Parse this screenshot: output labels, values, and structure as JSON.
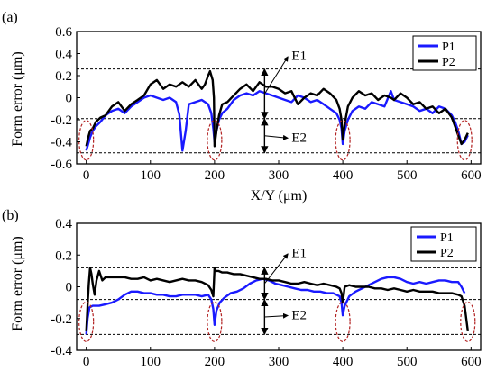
{
  "chart_data": [
    {
      "panel_label": "(a)",
      "type": "line",
      "xlabel": "X/Y (μm)",
      "ylabel": "Form error (μm)",
      "xlim": [
        -15,
        615
      ],
      "ylim": [
        -0.6,
        0.6
      ],
      "xticks": [
        "0",
        "100",
        "200",
        "300",
        "400",
        "500",
        "600"
      ],
      "yticks": [
        "-0.6",
        "-0.4",
        "-0.2",
        "0",
        "0.2",
        "0.4",
        "0.6"
      ],
      "xtick_values": [
        0,
        100,
        200,
        300,
        400,
        500,
        600
      ],
      "ytick_values": [
        -0.6,
        -0.4,
        -0.2,
        0,
        0.2,
        0.4,
        0.6
      ],
      "legend_position": "top-right",
      "reference_lines": [
        0.26,
        -0.19,
        -0.5
      ],
      "annotations": [
        {
          "text": "E1",
          "x": 278,
          "from": -0.19,
          "to": 0.26,
          "label_y": 0.39
        },
        {
          "text": "E2",
          "x": 278,
          "from": -0.5,
          "to": -0.19,
          "label_y": -0.35
        }
      ],
      "highlight_ellipses_x": [
        0,
        200,
        400,
        590
      ],
      "series": [
        {
          "name": "P1",
          "color": "#1a1aff",
          "x": [
            0,
            3,
            6,
            10,
            15,
            22,
            30,
            40,
            50,
            60,
            70,
            80,
            90,
            100,
            110,
            120,
            130,
            140,
            145,
            150,
            155,
            160,
            170,
            180,
            190,
            195,
            198,
            200,
            203,
            207,
            212,
            220,
            230,
            240,
            250,
            260,
            270,
            280,
            290,
            300,
            310,
            320,
            330,
            340,
            350,
            360,
            370,
            380,
            390,
            395,
            398,
            400,
            403,
            408,
            415,
            425,
            435,
            445,
            455,
            465,
            475,
            480,
            490,
            500,
            510,
            520,
            530,
            540,
            550,
            560,
            570,
            575,
            580,
            585,
            590,
            595
          ],
          "y": [
            -0.48,
            -0.42,
            -0.36,
            -0.3,
            -0.26,
            -0.22,
            -0.16,
            -0.12,
            -0.1,
            -0.14,
            -0.08,
            -0.04,
            0.0,
            0.02,
            0.0,
            -0.02,
            0.0,
            -0.04,
            -0.15,
            -0.48,
            -0.3,
            -0.06,
            -0.04,
            -0.02,
            -0.06,
            -0.14,
            -0.28,
            -0.4,
            -0.3,
            -0.2,
            -0.14,
            -0.1,
            -0.02,
            0.02,
            0.04,
            0.02,
            0.06,
            0.04,
            0.02,
            0.0,
            -0.02,
            -0.04,
            0.02,
            0.0,
            -0.04,
            -0.02,
            -0.06,
            -0.1,
            -0.14,
            -0.2,
            -0.28,
            -0.42,
            -0.3,
            -0.2,
            -0.12,
            -0.08,
            -0.1,
            -0.04,
            -0.06,
            -0.08,
            0.06,
            -0.02,
            -0.04,
            -0.06,
            -0.08,
            -0.12,
            -0.1,
            -0.14,
            -0.08,
            -0.1,
            -0.16,
            -0.22,
            -0.3,
            -0.42,
            -0.4,
            -0.34
          ]
        },
        {
          "name": "P2",
          "color": "#000000",
          "x": [
            0,
            3,
            6,
            10,
            15,
            22,
            30,
            40,
            50,
            60,
            70,
            80,
            90,
            100,
            110,
            120,
            130,
            140,
            150,
            160,
            170,
            180,
            185,
            190,
            193,
            197,
            199,
            200,
            203,
            207,
            212,
            220,
            230,
            240,
            250,
            260,
            270,
            280,
            290,
            300,
            310,
            320,
            330,
            340,
            350,
            360,
            370,
            380,
            390,
            395,
            398,
            400,
            403,
            408,
            415,
            425,
            435,
            445,
            455,
            465,
            475,
            480,
            490,
            500,
            510,
            520,
            530,
            540,
            550,
            560,
            570,
            575,
            580,
            585,
            590,
            595
          ],
          "y": [
            -0.44,
            -0.36,
            -0.3,
            -0.28,
            -0.22,
            -0.18,
            -0.16,
            -0.08,
            -0.04,
            -0.12,
            -0.06,
            -0.02,
            0.02,
            0.12,
            0.16,
            0.08,
            0.12,
            0.1,
            0.14,
            0.1,
            0.16,
            0.08,
            0.12,
            0.2,
            0.24,
            0.16,
            0.0,
            -0.44,
            -0.3,
            -0.16,
            -0.06,
            -0.04,
            0.02,
            0.08,
            0.12,
            0.06,
            0.14,
            0.1,
            0.1,
            0.08,
            0.04,
            0.06,
            -0.06,
            0.0,
            0.04,
            0.02,
            0.08,
            0.04,
            -0.02,
            -0.1,
            -0.2,
            -0.38,
            -0.24,
            -0.08,
            0.0,
            0.06,
            0.02,
            0.04,
            -0.02,
            0.02,
            0.0,
            -0.02,
            0.04,
            0.0,
            -0.06,
            -0.04,
            -0.1,
            -0.08,
            -0.14,
            -0.1,
            -0.18,
            -0.26,
            -0.34,
            -0.42,
            -0.38,
            -0.32
          ]
        }
      ]
    },
    {
      "panel_label": "(b)",
      "type": "line",
      "xlabel": "",
      "ylabel": "Form error (μm)",
      "xlim": [
        -15,
        615
      ],
      "ylim": [
        -0.4,
        0.4
      ],
      "xticks": [
        "0",
        "100",
        "200",
        "300",
        "400",
        "500",
        "600"
      ],
      "yticks": [
        "-0.4",
        "-0.2",
        "0",
        "0.2",
        "0.4"
      ],
      "xtick_values": [
        0,
        100,
        200,
        300,
        400,
        500,
        600
      ],
      "ytick_values": [
        -0.4,
        -0.2,
        0,
        0.2,
        0.4
      ],
      "legend_position": "top-right",
      "reference_lines": [
        0.12,
        -0.08,
        -0.3
      ],
      "annotations": [
        {
          "text": "E1",
          "x": 278,
          "from": -0.08,
          "to": 0.12,
          "label_y": 0.22
        },
        {
          "text": "E2",
          "x": 278,
          "from": -0.3,
          "to": -0.08,
          "label_y": -0.17
        }
      ],
      "highlight_ellipses_x": [
        0,
        200,
        400,
        595
      ],
      "series": [
        {
          "name": "P1",
          "color": "#1a1aff",
          "x": [
            0,
            2,
            5,
            10,
            20,
            30,
            40,
            50,
            60,
            70,
            80,
            90,
            100,
            110,
            120,
            130,
            140,
            150,
            160,
            170,
            180,
            190,
            195,
            198,
            200,
            203,
            208,
            215,
            225,
            235,
            245,
            255,
            265,
            275,
            285,
            295,
            305,
            315,
            325,
            335,
            345,
            355,
            365,
            375,
            385,
            395,
            398,
            400,
            403,
            410,
            420,
            430,
            440,
            450,
            460,
            470,
            480,
            490,
            500,
            510,
            520,
            530,
            540,
            550,
            560,
            570,
            580,
            585,
            590
          ],
          "y": [
            -0.3,
            -0.2,
            -0.13,
            -0.12,
            -0.12,
            -0.11,
            -0.1,
            -0.08,
            -0.05,
            -0.03,
            -0.03,
            -0.04,
            -0.04,
            -0.05,
            -0.05,
            -0.06,
            -0.06,
            -0.05,
            -0.05,
            -0.05,
            -0.06,
            -0.05,
            -0.08,
            -0.14,
            -0.24,
            -0.15,
            -0.1,
            -0.07,
            -0.04,
            -0.03,
            -0.01,
            0.02,
            0.04,
            0.05,
            0.04,
            0.02,
            0.01,
            0.0,
            -0.01,
            -0.02,
            -0.02,
            -0.03,
            -0.03,
            -0.04,
            -0.04,
            -0.06,
            -0.1,
            -0.18,
            -0.12,
            -0.06,
            -0.03,
            -0.01,
            0.01,
            0.03,
            0.05,
            0.06,
            0.06,
            0.05,
            0.03,
            0.02,
            0.03,
            0.02,
            0.03,
            0.04,
            0.04,
            0.03,
            0.03,
            0.0,
            -0.04
          ]
        },
        {
          "name": "P2",
          "color": "#000000",
          "x": [
            0,
            2,
            4,
            6,
            8,
            10,
            13,
            16,
            20,
            25,
            30,
            40,
            50,
            60,
            70,
            80,
            90,
            100,
            110,
            120,
            130,
            140,
            150,
            160,
            170,
            180,
            190,
            195,
            198,
            200,
            202,
            206,
            212,
            220,
            230,
            240,
            250,
            260,
            270,
            280,
            290,
            300,
            310,
            320,
            330,
            340,
            350,
            360,
            370,
            380,
            390,
            395,
            398,
            400,
            403,
            410,
            420,
            430,
            440,
            450,
            460,
            470,
            480,
            490,
            500,
            510,
            520,
            530,
            540,
            550,
            560,
            570,
            580,
            585,
            590,
            595
          ],
          "y": [
            -0.28,
            -0.12,
            0.02,
            0.12,
            0.08,
            0.02,
            -0.05,
            0.04,
            0.1,
            0.04,
            0.06,
            0.06,
            0.06,
            0.06,
            0.05,
            0.05,
            0.06,
            0.04,
            0.05,
            0.04,
            0.03,
            0.04,
            0.05,
            0.04,
            0.04,
            0.03,
            0.01,
            -0.02,
            -0.06,
            0.12,
            0.1,
            0.1,
            0.09,
            0.09,
            0.08,
            0.08,
            0.07,
            0.06,
            0.05,
            0.05,
            0.04,
            0.04,
            0.03,
            0.02,
            0.02,
            0.03,
            0.02,
            0.01,
            0.02,
            0.01,
            0.0,
            -0.01,
            -0.04,
            -0.1,
            0.0,
            0.01,
            0.0,
            0.0,
            0.0,
            -0.01,
            -0.01,
            -0.02,
            -0.01,
            -0.02,
            -0.03,
            -0.02,
            -0.03,
            -0.03,
            -0.03,
            -0.04,
            -0.04,
            -0.04,
            -0.05,
            -0.06,
            -0.12,
            -0.28
          ]
        }
      ]
    }
  ]
}
